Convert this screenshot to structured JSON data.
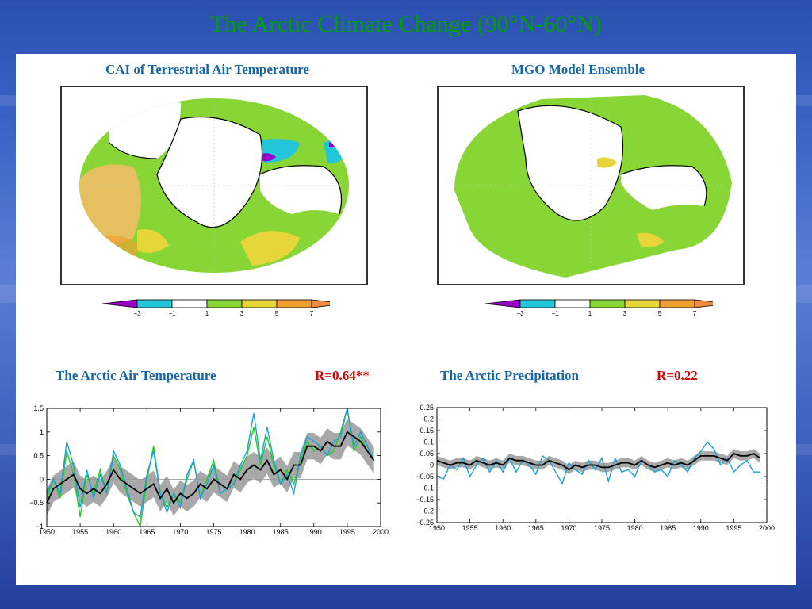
{
  "page": {
    "title": "The Arctic Climate Change (90°N-60°N)"
  },
  "maps": [
    {
      "caption": "CAI of Terrestrial Air Temperature"
    },
    {
      "caption": "MGO Model Ensemble"
    }
  ],
  "colorbar": {
    "labels": [
      "−3",
      "−1",
      "1",
      "3",
      "5",
      "7"
    ],
    "colors": [
      "#9b00c8",
      "#22c6d8",
      "#ffffff",
      "#88d635",
      "#e6d63a",
      "#f0a030",
      "#f08a40"
    ]
  },
  "series_colors": {
    "observed_green": "#22cc22",
    "observed_blue": "#1aa0d8",
    "ensemble_mean": "#000000",
    "spread": "#999999"
  },
  "chart_data": [
    {
      "type": "line",
      "title": "The Arctic Air Temperature",
      "r_value": "R=0.64**",
      "xlim": [
        1950,
        2000
      ],
      "ylim": [
        -1,
        1.5
      ],
      "x_ticks": [
        "1950",
        "1955",
        "1960",
        "1965",
        "1970",
        "1975",
        "1980",
        "1985",
        "1990",
        "1995",
        "2000"
      ],
      "y_ticks": [
        "1.5",
        "1",
        "0.5",
        "0",
        "−0.5",
        "−1"
      ],
      "y_tick_values": [
        1.5,
        1,
        0.5,
        0,
        -0.5,
        -1
      ],
      "x": [
        1950,
        1951,
        1952,
        1953,
        1954,
        1955,
        1956,
        1957,
        1958,
        1959,
        1960,
        1961,
        1962,
        1963,
        1964,
        1965,
        1966,
        1967,
        1968,
        1969,
        1970,
        1971,
        1972,
        1973,
        1974,
        1975,
        1976,
        1977,
        1978,
        1979,
        1980,
        1981,
        1982,
        1983,
        1984,
        1985,
        1986,
        1987,
        1988,
        1989,
        1990,
        1991,
        1992,
        1993,
        1994,
        1995,
        1996,
        1997,
        1998,
        1999
      ],
      "series": [
        {
          "values": [
            -0.4,
            0.0,
            -0.4,
            0.6,
            0.1,
            -0.8,
            0.1,
            -0.3,
            0.2,
            -0.3,
            0.5,
            0.2,
            -0.3,
            -0.7,
            -1.0,
            0.0,
            0.7,
            -0.3,
            -0.6,
            -0.3,
            -0.5,
            0.0,
            0.4,
            -0.4,
            0.0,
            0.4,
            -0.3,
            -0.2,
            -0.1,
            0.2,
            0.5,
            1.1,
            0.3,
            0.9,
            0.3,
            -0.1,
            0.2,
            -0.1,
            0.4,
            0.8,
            0.6,
            0.7,
            0.5,
            0.6,
            1.0,
            1.5,
            0.6,
            0.9,
            0.6,
            0.4
          ]
        },
        {
          "values": [
            -0.3,
            0.0,
            -0.3,
            0.8,
            0.3,
            -0.6,
            0.2,
            -0.4,
            0.1,
            -0.3,
            0.6,
            0.3,
            -0.2,
            -0.7,
            -0.8,
            0.1,
            0.6,
            -0.3,
            -0.7,
            -0.3,
            -0.6,
            0.1,
            0.4,
            -0.4,
            -0.1,
            0.3,
            -0.3,
            -0.2,
            -0.1,
            0.3,
            0.6,
            1.4,
            0.4,
            1.1,
            0.4,
            -0.1,
            0.1,
            -0.3,
            0.5,
            0.9,
            0.8,
            0.7,
            0.5,
            0.8,
            0.9,
            1.5,
            0.7,
            1.0,
            0.7,
            0.4
          ]
        },
        {
          "values": [
            -0.5,
            -0.2,
            -0.1,
            0.0,
            0.1,
            -0.2,
            -0.3,
            -0.2,
            -0.3,
            -0.1,
            0.2,
            0.0,
            -0.1,
            -0.2,
            -0.3,
            -0.2,
            -0.1,
            -0.4,
            -0.2,
            -0.5,
            -0.3,
            -0.4,
            -0.3,
            -0.1,
            -0.2,
            0.0,
            -0.1,
            -0.2,
            0.1,
            0.0,
            0.2,
            0.3,
            0.2,
            0.4,
            0.1,
            0.2,
            0.0,
            0.3,
            0.3,
            0.7,
            0.7,
            0.6,
            0.8,
            0.7,
            0.7,
            1.0,
            0.9,
            0.8,
            0.6,
            0.4
          ]
        }
      ]
    },
    {
      "type": "line",
      "title": "The Arctic Precipitation",
      "r_value": "R=0.22",
      "xlim": [
        1950,
        2000
      ],
      "ylim": [
        -0.25,
        0.25
      ],
      "x_ticks": [
        "1950",
        "1955",
        "1960",
        "1965",
        "1970",
        "1975",
        "1980",
        "1985",
        "1990",
        "1995",
        "2000"
      ],
      "y_ticks": [
        "0.25",
        "0.2",
        "0.15",
        "0.1",
        "0.05",
        "0",
        "−0.05",
        "−0.1",
        "−0.15",
        "−0.2",
        "−0.25"
      ],
      "y_tick_values": [
        0.25,
        0.2,
        0.15,
        0.1,
        0.05,
        0,
        -0.05,
        -0.1,
        -0.15,
        -0.2,
        -0.25
      ],
      "x": [
        1950,
        1951,
        1952,
        1953,
        1954,
        1955,
        1956,
        1957,
        1958,
        1959,
        1960,
        1961,
        1962,
        1963,
        1964,
        1965,
        1966,
        1967,
        1968,
        1969,
        1970,
        1971,
        1972,
        1973,
        1974,
        1975,
        1976,
        1977,
        1978,
        1979,
        1980,
        1981,
        1982,
        1983,
        1984,
        1985,
        1986,
        1987,
        1988,
        1989,
        1990,
        1991,
        1992,
        1993,
        1994,
        1995,
        1996,
        1997,
        1998,
        1999
      ],
      "series": [
        {
          "values": [
            -0.05,
            -0.06,
            0.0,
            -0.02,
            0.03,
            -0.05,
            0.0,
            0.03,
            -0.03,
            0.02,
            -0.03,
            0.03,
            -0.03,
            0.02,
            0.0,
            -0.04,
            0.04,
            0.02,
            -0.03,
            -0.08,
            0.01,
            -0.02,
            -0.04,
            0.02,
            -0.02,
            0.03,
            -0.07,
            0.03,
            -0.03,
            -0.02,
            -0.05,
            0.02,
            0.0,
            -0.03,
            -0.02,
            -0.05,
            0.02,
            0.0,
            -0.03,
            0.03,
            0.06,
            0.1,
            0.07,
            0.0,
            0.03,
            -0.03,
            0.0,
            0.02,
            -0.03,
            -0.03
          ]
        },
        {
          "values": [
            0.02,
            0.01,
            0.0,
            0.01,
            0.01,
            0.0,
            0.02,
            0.01,
            0.0,
            0.01,
            0.0,
            0.03,
            0.02,
            0.02,
            0.01,
            0.0,
            0.0,
            0.02,
            0.01,
            0.0,
            -0.02,
            0.0,
            -0.01,
            0.0,
            0.0,
            -0.01,
            -0.01,
            0.0,
            0.01,
            0.01,
            0.0,
            0.02,
            0.0,
            -0.01,
            0.0,
            0.01,
            0.0,
            0.01,
            0.0,
            0.02,
            0.04,
            0.04,
            0.04,
            0.03,
            0.02,
            0.05,
            0.04,
            0.04,
            0.05,
            0.03
          ]
        }
      ]
    }
  ]
}
